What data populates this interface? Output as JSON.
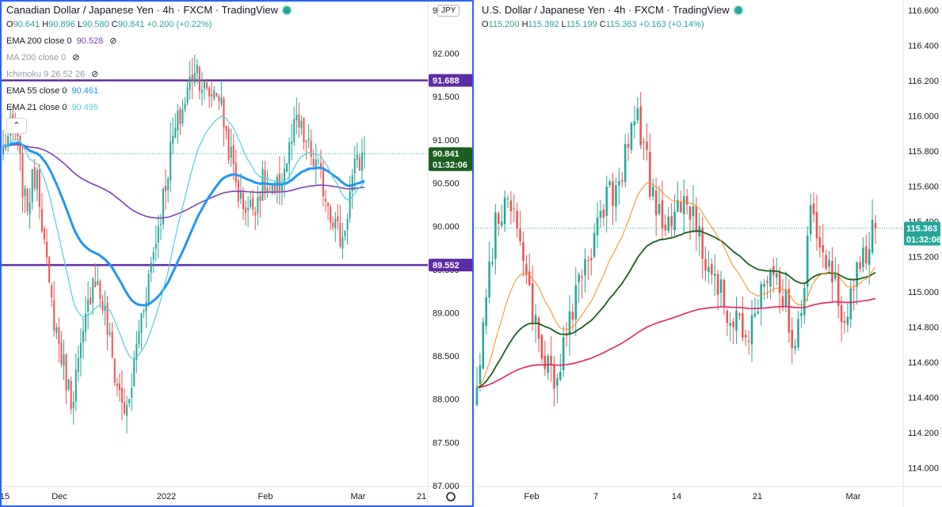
{
  "colors": {
    "up": "#26a69a",
    "down": "#ef5350",
    "ema200_left": "#7e3fba",
    "ema55_left": "#2196f3",
    "ema21_left": "#4dd0e1",
    "hline": "#5e2ca5",
    "ema200_right": "#e91e63",
    "ema55_right": "#1b5e20",
    "ema21_right": "#ff8c1a",
    "active_border": "#2962ff"
  },
  "left": {
    "title": "Canadian Dollar / Japanese Yen · 4h · FXCM · TradingView",
    "symbol_button": "JPY",
    "ohlc": [
      {
        "label": "O",
        "value": "90.641"
      },
      {
        "label": "H",
        "value": "90.896"
      },
      {
        "label": "L",
        "value": "90.580"
      },
      {
        "label": "C",
        "value": "90.841"
      },
      {
        "label": "",
        "value": "+0.200 (+0.22%)"
      }
    ],
    "indicators": [
      {
        "label": "EMA 200 close 0",
        "value": "90.528",
        "hidden": false,
        "icon": "eye-crossed-icon"
      },
      {
        "label": "MA 200 close 0",
        "value": "",
        "hidden": true,
        "icon": "eye-crossed-icon"
      },
      {
        "label": "Ichimoku 9 26 52 26",
        "value": "",
        "hidden": true,
        "icon": "eye-crossed-icon"
      },
      {
        "label": "EMA 55 close 0",
        "value": "90.461",
        "hidden": false,
        "icon": ""
      },
      {
        "label": "EMA 21 close 0",
        "value": "90.495",
        "hidden": false,
        "icon": ""
      }
    ],
    "price_axis": [
      "92.500",
      "92.000",
      "91.500",
      "91.000",
      "90.500",
      "90.000",
      "89.500",
      "89.000",
      "88.500",
      "88.000",
      "87.500",
      "87.000"
    ],
    "time_axis": [
      "15",
      "Dec",
      "2022",
      "Feb",
      "Mar",
      "21"
    ],
    "tags": {
      "resistance": "91.688",
      "support": "89.552",
      "last": "90.841",
      "countdown": "01:32:06"
    },
    "chart_data": {
      "type": "candlestick",
      "title": "Canadian Dollar / Japanese Yen · 4h · FXCM",
      "ylim": [
        87.0,
        92.6
      ],
      "last_close": 90.841,
      "horizontal_lines": [
        91.688,
        89.552
      ],
      "close_path": [
        {
          "t": "Nov 15",
          "c": 90.9
        },
        {
          "t": "Nov 19",
          "c": 91.2
        },
        {
          "t": "Nov 22",
          "c": 90.2
        },
        {
          "t": "Nov 26",
          "c": 90.7
        },
        {
          "t": "Nov 29",
          "c": 89.3
        },
        {
          "t": "Dec 1",
          "c": 88.6
        },
        {
          "t": "Dec 3",
          "c": 88.0
        },
        {
          "t": "Dec 6",
          "c": 88.6
        },
        {
          "t": "Dec 9",
          "c": 89.5
        },
        {
          "t": "Dec 13",
          "c": 89.0
        },
        {
          "t": "Dec 16",
          "c": 88.2
        },
        {
          "t": "Dec 19",
          "c": 87.8
        },
        {
          "t": "Dec 22",
          "c": 88.8
        },
        {
          "t": "Dec 27",
          "c": 89.5
        },
        {
          "t": "Dec 30",
          "c": 90.2
        },
        {
          "t": "Jan 4",
          "c": 91.0
        },
        {
          "t": "Jan 7",
          "c": 91.4
        },
        {
          "t": "Jan 11",
          "c": 91.9
        },
        {
          "t": "Jan 14",
          "c": 91.5
        },
        {
          "t": "Jan 18",
          "c": 91.6
        },
        {
          "t": "Jan 21",
          "c": 90.9
        },
        {
          "t": "Jan 25",
          "c": 90.3
        },
        {
          "t": "Jan 28",
          "c": 90.2
        },
        {
          "t": "Feb 1",
          "c": 90.5
        },
        {
          "t": "Feb 4",
          "c": 90.3
        },
        {
          "t": "Feb 8",
          "c": 90.7
        },
        {
          "t": "Feb 11",
          "c": 91.2
        },
        {
          "t": "Feb 15",
          "c": 90.9
        },
        {
          "t": "Feb 18",
          "c": 90.6
        },
        {
          "t": "Feb 22",
          "c": 90.2
        },
        {
          "t": "Feb 25",
          "c": 89.8
        },
        {
          "t": "Mar 1",
          "c": 90.6
        },
        {
          "t": "Mar 3",
          "c": 90.84
        }
      ]
    }
  },
  "right": {
    "title": "U.S. Dollar / Japanese Yen · 4h · FXCM · TradingView",
    "ohlc": [
      {
        "label": "O",
        "value": "115.200"
      },
      {
        "label": "H",
        "value": "115.392"
      },
      {
        "label": "L",
        "value": "115.199"
      },
      {
        "label": "C",
        "value": "115.363"
      },
      {
        "label": "",
        "value": "+0.163 (+0.14%)"
      }
    ],
    "price_axis": [
      "116.600",
      "116.400",
      "116.200",
      "116.000",
      "115.800",
      "115.600",
      "115.400",
      "115.200",
      "115.000",
      "114.800",
      "114.600",
      "114.400",
      "114.200",
      "114.000"
    ],
    "time_axis": [
      "Feb",
      "7",
      "14",
      "21",
      "Mar"
    ],
    "tags": {
      "last": "115.363",
      "countdown": "01:32:06"
    },
    "chart_data": {
      "type": "candlestick",
      "title": "U.S. Dollar / Japanese Yen · 4h · FXCM",
      "ylim": [
        113.9,
        116.65
      ],
      "last_close": 115.363,
      "close_path": [
        {
          "t": "Jan 27",
          "c": 114.4
        },
        {
          "t": "Jan 28",
          "c": 115.3
        },
        {
          "t": "Jan 31",
          "c": 115.6
        },
        {
          "t": "Feb 1",
          "c": 115.1
        },
        {
          "t": "Feb 2",
          "c": 114.7
        },
        {
          "t": "Feb 3",
          "c": 114.5
        },
        {
          "t": "Feb 4",
          "c": 114.9
        },
        {
          "t": "Feb 7",
          "c": 115.2
        },
        {
          "t": "Feb 8",
          "c": 115.5
        },
        {
          "t": "Feb 9",
          "c": 115.6
        },
        {
          "t": "Feb 10",
          "c": 116.1
        },
        {
          "t": "Feb 11",
          "c": 115.5
        },
        {
          "t": "Feb 14",
          "c": 115.4
        },
        {
          "t": "Feb 15",
          "c": 115.6
        },
        {
          "t": "Feb 16",
          "c": 115.3
        },
        {
          "t": "Feb 17",
          "c": 115.0
        },
        {
          "t": "Feb 18",
          "c": 114.9
        },
        {
          "t": "Feb 21",
          "c": 114.7
        },
        {
          "t": "Feb 22",
          "c": 115.0
        },
        {
          "t": "Feb 23",
          "c": 115.1
        },
        {
          "t": "Feb 24",
          "c": 114.6
        },
        {
          "t": "Feb 25",
          "c": 115.5
        },
        {
          "t": "Feb 28",
          "c": 115.2
        },
        {
          "t": "Mar 1",
          "c": 114.8
        },
        {
          "t": "Mar 2",
          "c": 115.2
        },
        {
          "t": "Mar 3",
          "c": 115.36
        }
      ]
    }
  }
}
